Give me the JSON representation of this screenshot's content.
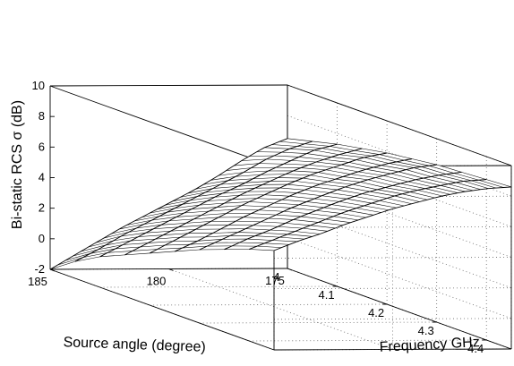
{
  "chart_data": {
    "type": "surface3d",
    "title": "",
    "xlabel": "Source angle (degree)",
    "ylabel": "Frequency GHz",
    "zlabel": "Bi-static RCS σ (dB)",
    "x_ticks": [
      175,
      180,
      185
    ],
    "y_ticks": [
      4,
      4.1,
      4.2,
      4.3,
      4.4
    ],
    "z_ticks": [
      -2,
      0,
      2,
      4,
      6,
      8,
      10
    ],
    "xlim": [
      175,
      185
    ],
    "ylim": [
      4,
      4.45
    ],
    "zlim": [
      -2,
      10
    ],
    "grid": true,
    "surface": {
      "source_angle": [
        175,
        176,
        177,
        178,
        179,
        180,
        181,
        182,
        183,
        184,
        185
      ],
      "frequency_ghz": [
        4.0,
        4.05,
        4.1,
        4.15,
        4.2,
        4.25,
        4.3,
        4.35,
        4.4,
        4.45
      ],
      "rcs_db_rows": [
        [
          6.5,
          5.9,
          5.0,
          4.0,
          3.1,
          2.3,
          1.5,
          0.7,
          -0.2,
          -1.1,
          -2.0
        ],
        [
          6.9,
          6.4,
          5.7,
          4.8,
          4.0,
          3.2,
          2.4,
          1.6,
          0.8,
          -0.1,
          -0.9
        ],
        [
          7.3,
          6.9,
          6.2,
          5.5,
          4.7,
          4.0,
          3.2,
          2.4,
          1.6,
          0.8,
          0.0
        ],
        [
          7.6,
          7.2,
          6.7,
          6.1,
          5.4,
          4.7,
          3.9,
          3.1,
          2.3,
          1.5,
          0.7
        ],
        [
          7.9,
          7.6,
          7.1,
          6.6,
          6.0,
          5.3,
          4.6,
          3.8,
          3.0,
          2.2,
          1.4
        ],
        [
          8.1,
          7.8,
          7.4,
          6.9,
          6.4,
          5.8,
          5.1,
          4.4,
          3.6,
          2.8,
          2.1
        ],
        [
          8.3,
          8.1,
          7.7,
          7.3,
          6.8,
          6.2,
          5.6,
          4.9,
          4.2,
          3.5,
          2.8
        ],
        [
          8.4,
          8.2,
          7.9,
          7.5,
          7.1,
          6.6,
          6.0,
          5.4,
          4.7,
          4.1,
          3.4
        ],
        [
          8.5,
          8.4,
          8.1,
          7.8,
          7.4,
          6.9,
          6.4,
          5.8,
          5.2,
          4.6,
          4.0
        ],
        [
          8.6,
          8.5,
          8.3,
          8.0,
          7.6,
          7.2,
          6.7,
          6.2,
          5.6,
          5.1,
          4.5
        ]
      ]
    }
  }
}
